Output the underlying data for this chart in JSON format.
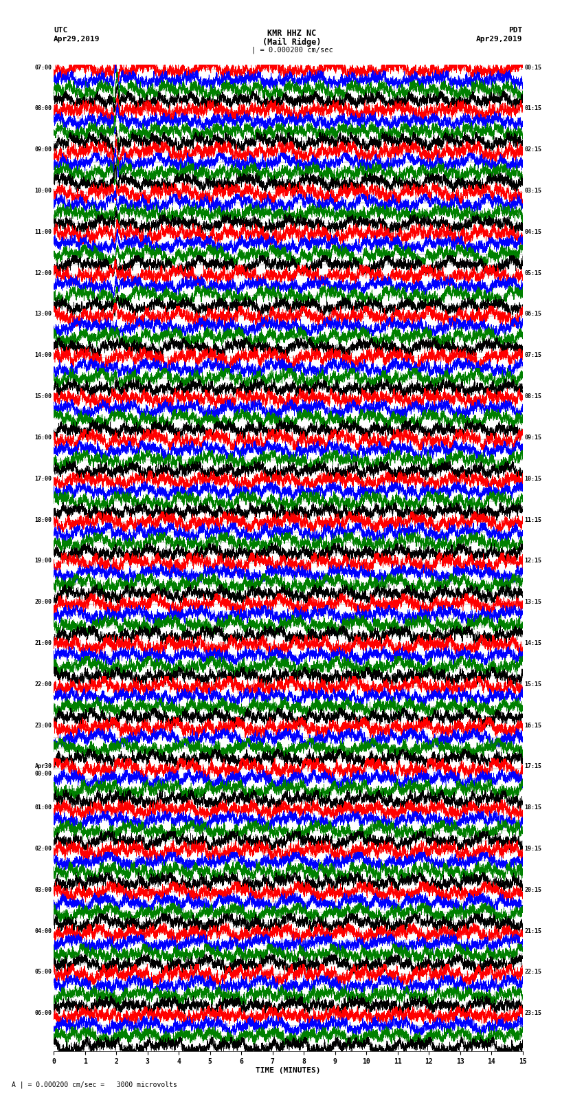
{
  "title_line1": "KMR HHZ NC",
  "title_line2": "(Mail Ridge)",
  "scale_label": "= 0.000200 cm/sec",
  "scale_marker": "|",
  "left_header": "UTC",
  "left_subheader": "Apr29,2019",
  "right_header": "PDT",
  "right_subheader": "Apr29,2019",
  "bottom_label": "TIME (MINUTES)",
  "bottom_caption": "= 0.000200 cm/sec =   3000 microvolts",
  "utc_times": [
    "07:00",
    "08:00",
    "09:00",
    "10:00",
    "11:00",
    "12:00",
    "13:00",
    "14:00",
    "15:00",
    "16:00",
    "17:00",
    "18:00",
    "19:00",
    "20:00",
    "21:00",
    "22:00",
    "23:00",
    "Apr30\n00:00",
    "01:00",
    "02:00",
    "03:00",
    "04:00",
    "05:00",
    "06:00"
  ],
  "pdt_times": [
    "00:15",
    "01:15",
    "02:15",
    "03:15",
    "04:15",
    "05:15",
    "06:15",
    "07:15",
    "08:15",
    "09:15",
    "10:15",
    "11:15",
    "12:15",
    "13:15",
    "14:15",
    "15:15",
    "16:15",
    "17:15",
    "18:15",
    "19:15",
    "20:15",
    "21:15",
    "22:15",
    "23:15"
  ],
  "num_rows": 24,
  "traces_per_row": 4,
  "time_min": 0,
  "time_max": 15,
  "xticks": [
    0,
    1,
    2,
    3,
    4,
    5,
    6,
    7,
    8,
    9,
    10,
    11,
    12,
    13,
    14,
    15
  ],
  "colors": [
    "red",
    "blue",
    "green",
    "black"
  ],
  "bg_color": "white",
  "fig_width": 8.5,
  "fig_height": 16.13
}
